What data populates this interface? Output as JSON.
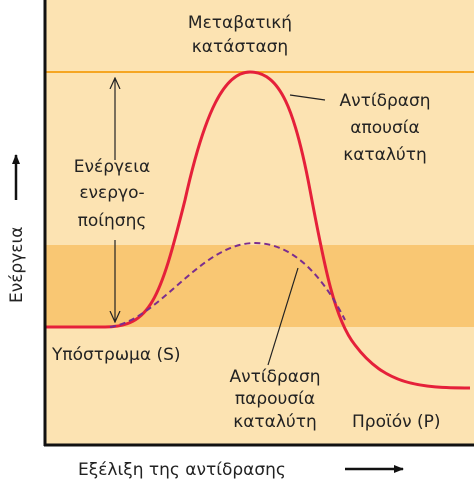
{
  "diagram": {
    "transition_state": [
      "Μεταβατική",
      "κατάσταση"
    ],
    "uncatalyzed": [
      "Αντίδραση",
      "απουσία",
      "καταλύτη"
    ],
    "activation_energy": [
      "Ενέργεια",
      "ενεργο-",
      "ποίησης"
    ],
    "substrate": "Υπόστρωμα (S)",
    "catalyzed": [
      "Αντίδραση",
      "παρουσία",
      "καταλύτη"
    ],
    "product": "Προϊόν (P)",
    "y_axis_label": "Ενέργεια",
    "x_axis_label": "Εξέλιξη της αντίδρασης"
  }
}
